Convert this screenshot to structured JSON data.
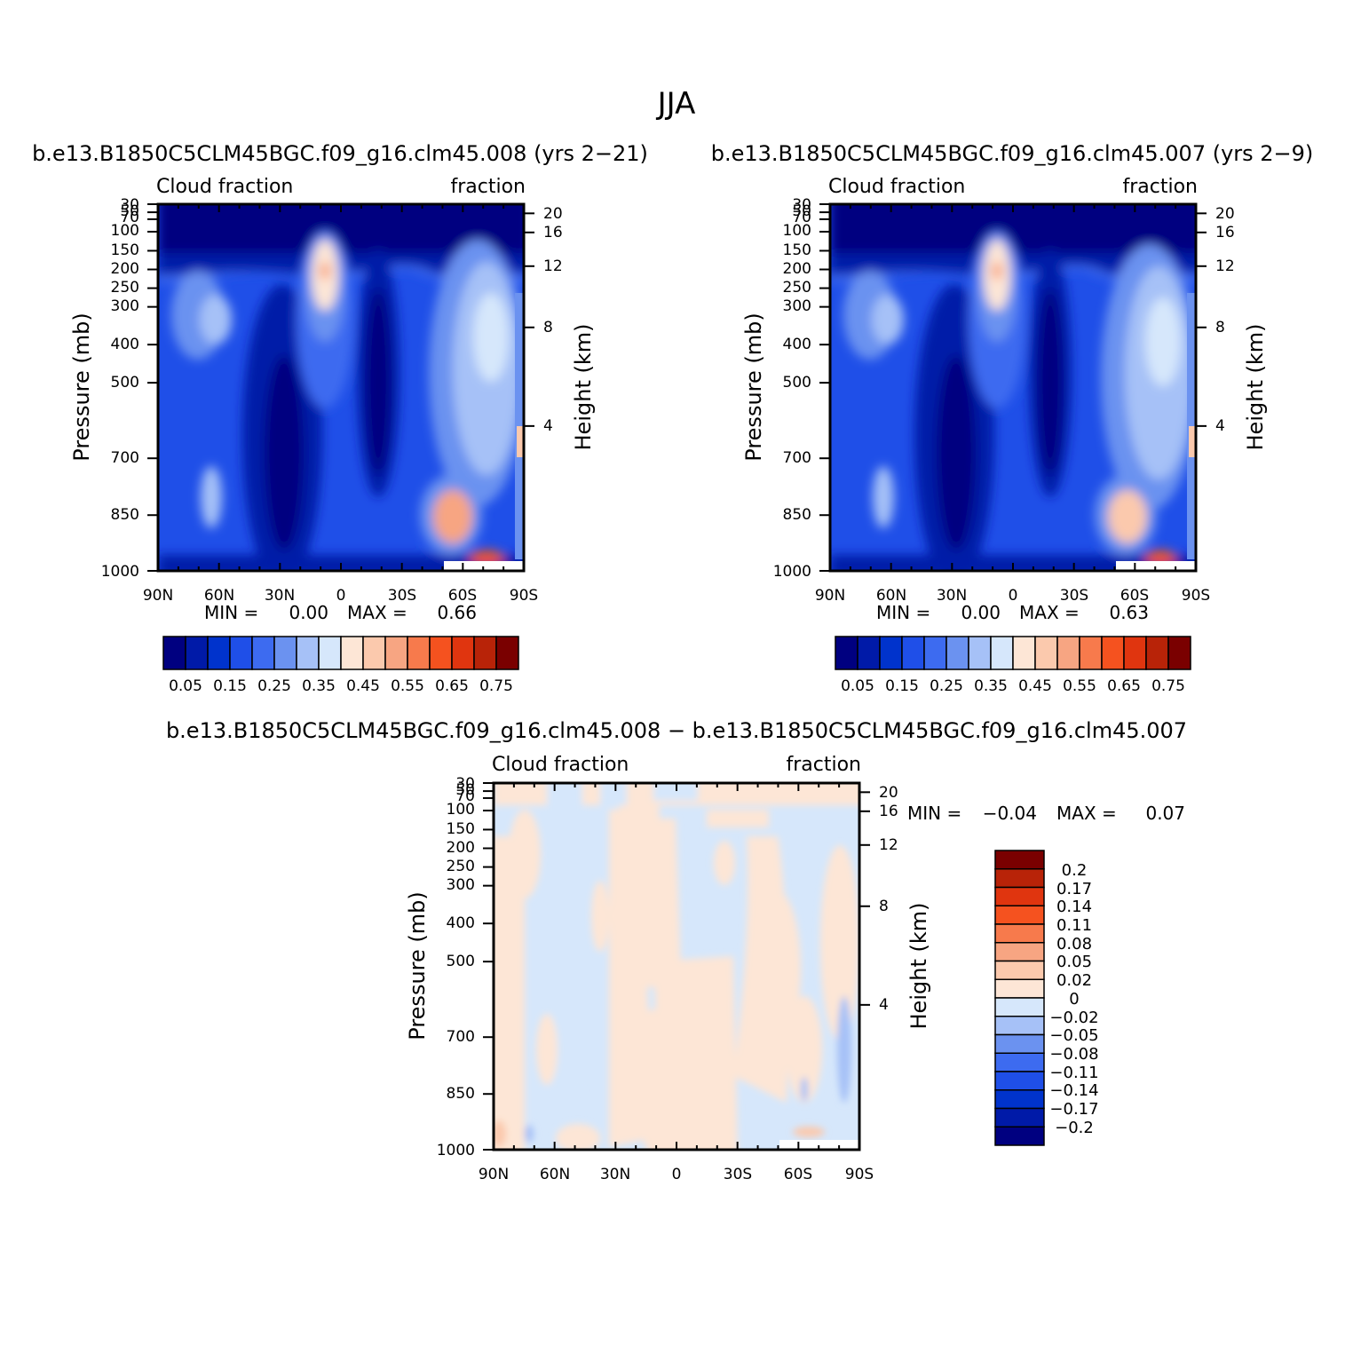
{
  "figure": {
    "title": "JJA"
  },
  "colors": {
    "cloud_scale": [
      "#000080",
      "#001aa8",
      "#0033cc",
      "#1f4fe8",
      "#3d6bf0",
      "#6b92f0",
      "#a6c1f7",
      "#d6e7fb",
      "#fde6d6",
      "#fbc9ad",
      "#f7a582",
      "#f77a4c",
      "#f5521f",
      "#e0350f",
      "#b82308",
      "#7a0000"
    ],
    "diff_scale": [
      "#000080",
      "#001aa8",
      "#0033cc",
      "#1f4fe8",
      "#3d6bf0",
      "#6b92f0",
      "#a6c1f7",
      "#d6e7fb",
      "#fde6d6",
      "#fbc9ad",
      "#f7a582",
      "#f77a4c",
      "#f5521f",
      "#e0350f",
      "#b82308",
      "#7a0000"
    ]
  },
  "chart_data": [
    {
      "type": "heatmap",
      "title": "b.e13.B1850C5CLM45BGC.f09_g16.clm45.008 (yrs 2-21)",
      "left_string": "Cloud fraction",
      "right_string": "fraction",
      "ylabel": "Pressure (mb)",
      "ylabel_right": "Height (km)",
      "x_ticks": [
        "90N",
        "60N",
        "30N",
        "0",
        "30S",
        "60S",
        "90S"
      ],
      "y_ticks": [
        "30",
        "50",
        "70",
        "100",
        "150",
        "200",
        "250",
        "300",
        "400",
        "500",
        "700",
        "850",
        "1000"
      ],
      "y_ticks_right": [
        "20",
        "16",
        "12",
        "8",
        "4"
      ],
      "min_label": "MIN =",
      "min_value": "0.00",
      "max_label": "MAX =",
      "max_value": "0.66",
      "colorbar_labels": [
        "0.05",
        "0.15",
        "0.25",
        "0.35",
        "0.45",
        "0.55",
        "0.65",
        "0.75"
      ],
      "colorbar_levels": [
        0.05,
        0.1,
        0.15,
        0.2,
        0.25,
        0.3,
        0.35,
        0.4,
        0.45,
        0.5,
        0.55,
        0.6,
        0.65,
        0.7,
        0.75
      ]
    },
    {
      "type": "heatmap",
      "title": "b.e13.B1850C5CLM45BGC.f09_g16.clm45.007 (yrs 2-9)",
      "left_string": "Cloud fraction",
      "right_string": "fraction",
      "ylabel": "Pressure (mb)",
      "ylabel_right": "Height (km)",
      "x_ticks": [
        "90N",
        "60N",
        "30N",
        "0",
        "30S",
        "60S",
        "90S"
      ],
      "y_ticks": [
        "30",
        "50",
        "70",
        "100",
        "150",
        "200",
        "250",
        "300",
        "400",
        "500",
        "700",
        "850",
        "1000"
      ],
      "y_ticks_right": [
        "20",
        "16",
        "12",
        "8",
        "4"
      ],
      "min_label": "MIN =",
      "min_value": "0.00",
      "max_label": "MAX =",
      "max_value": "0.63",
      "colorbar_labels": [
        "0.05",
        "0.15",
        "0.25",
        "0.35",
        "0.45",
        "0.55",
        "0.65",
        "0.75"
      ],
      "colorbar_levels": [
        0.05,
        0.1,
        0.15,
        0.2,
        0.25,
        0.3,
        0.35,
        0.4,
        0.45,
        0.5,
        0.55,
        0.6,
        0.65,
        0.7,
        0.75
      ]
    },
    {
      "type": "heatmap",
      "title": "b.e13.B1850C5CLM45BGC.f09_g16.clm45.008 - b.e13.B1850C5CLM45BGC.f09_g16.clm45.007",
      "left_string": "Cloud fraction",
      "right_string": "fraction",
      "ylabel": "Pressure (mb)",
      "ylabel_right": "Height (km)",
      "x_ticks": [
        "90N",
        "60N",
        "30N",
        "0",
        "30S",
        "60S",
        "90S"
      ],
      "y_ticks": [
        "30",
        "50",
        "70",
        "100",
        "150",
        "200",
        "250",
        "300",
        "400",
        "500",
        "700",
        "850",
        "1000"
      ],
      "y_ticks_right": [
        "20",
        "16",
        "12",
        "8",
        "4"
      ],
      "min_label": "MIN =",
      "min_value": "-0.04",
      "max_label": "MAX =",
      "max_value": "0.07",
      "colorbar_labels": [
        "0.2",
        "0.17",
        "0.14",
        "0.11",
        "0.08",
        "0.05",
        "0.02",
        "0",
        "-0.02",
        "-0.05",
        "-0.08",
        "-0.11",
        "-0.14",
        "-0.17",
        "-0.2"
      ],
      "colorbar_levels": [
        0.2,
        0.17,
        0.14,
        0.11,
        0.08,
        0.05,
        0.02,
        0,
        -0.02,
        -0.05,
        -0.08,
        -0.11,
        -0.14,
        -0.17,
        -0.2
      ]
    }
  ]
}
